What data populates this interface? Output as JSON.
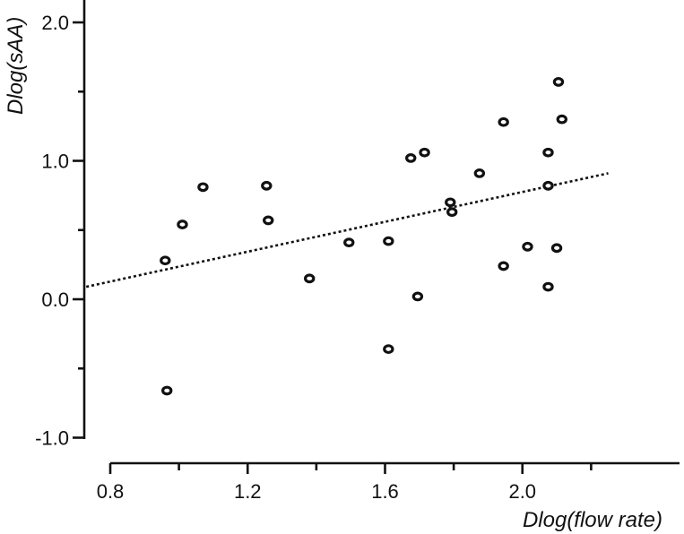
{
  "chart_data": {
    "type": "scatter",
    "title": "",
    "xlabel": "Dlog(flow rate)",
    "ylabel": "Dlog(sAA)",
    "xlim": [
      0.8,
      2.25
    ],
    "ylim": [
      -1.1,
      2.1
    ],
    "x_ticks": [
      "0.8",
      "1.2",
      "1.6",
      "2.0"
    ],
    "y_ticks": [
      "-1.0",
      "0.0",
      "1.0",
      "2.0"
    ],
    "x_tick_values": [
      0.8,
      1.2,
      1.6,
      2.0
    ],
    "x_minor_ticks": [
      1.0,
      1.4,
      1.8,
      2.2
    ],
    "y_tick_values": [
      -1.0,
      0.0,
      1.0,
      2.0
    ],
    "y_minor_ticks": [
      -0.5,
      0.5,
      1.5
    ],
    "grid": false,
    "legend": "none",
    "series": [
      {
        "marker": "open-circle",
        "points": [
          {
            "x": 0.96,
            "y": 0.28
          },
          {
            "x": 0.965,
            "y": -0.66
          },
          {
            "x": 1.01,
            "y": 0.54
          },
          {
            "x": 1.07,
            "y": 0.81
          },
          {
            "x": 1.255,
            "y": 0.82
          },
          {
            "x": 1.26,
            "y": 0.57
          },
          {
            "x": 1.38,
            "y": 0.15
          },
          {
            "x": 1.495,
            "y": 0.41
          },
          {
            "x": 1.61,
            "y": 0.42
          },
          {
            "x": 1.61,
            "y": -0.36
          },
          {
            "x": 1.675,
            "y": 1.02
          },
          {
            "x": 1.695,
            "y": 0.02
          },
          {
            "x": 1.715,
            "y": 1.06
          },
          {
            "x": 1.79,
            "y": 0.7
          },
          {
            "x": 1.795,
            "y": 0.63
          },
          {
            "x": 1.875,
            "y": 0.91
          },
          {
            "x": 1.945,
            "y": 1.28
          },
          {
            "x": 1.945,
            "y": 0.24
          },
          {
            "x": 2.015,
            "y": 0.38
          },
          {
            "x": 2.075,
            "y": 1.06
          },
          {
            "x": 2.075,
            "y": 0.82
          },
          {
            "x": 2.075,
            "y": 0.09
          },
          {
            "x": 2.1,
            "y": 0.37
          },
          {
            "x": 2.105,
            "y": 1.57
          },
          {
            "x": 2.115,
            "y": 1.3
          }
        ]
      }
    ],
    "trendline": {
      "style": "dotted",
      "x": [
        0.73,
        2.25
      ],
      "y": [
        0.09,
        0.91
      ]
    }
  }
}
